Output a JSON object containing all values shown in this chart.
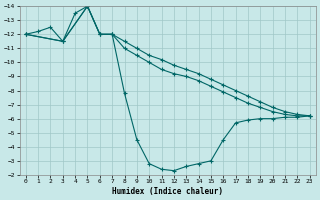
{
  "xlabel": "Humidex (Indice chaleur)",
  "ylabel": "",
  "bg_color": "#c8e8e8",
  "line_color": "#006666",
  "grid_color": "#a0c8c8",
  "xlim": [
    -0.5,
    23.5
  ],
  "ylim_bottom": -14,
  "ylim_top": -2,
  "xticks": [
    0,
    1,
    2,
    3,
    4,
    5,
    6,
    7,
    8,
    9,
    10,
    11,
    12,
    13,
    14,
    15,
    16,
    17,
    18,
    19,
    20,
    21,
    22,
    23
  ],
  "yticks": [
    -2,
    -3,
    -4,
    -5,
    -6,
    -7,
    -8,
    -9,
    -10,
    -11,
    -12,
    -13,
    -14
  ],
  "series": [
    {
      "x": [
        0,
        1,
        2,
        3,
        4,
        5,
        6,
        7,
        8,
        9,
        10,
        11,
        12,
        13,
        14,
        15,
        16,
        17,
        18,
        19,
        20,
        21,
        22,
        23
      ],
      "y": [
        -12,
        -12.2,
        -12.5,
        -11.5,
        -13.5,
        -14,
        -12,
        -12,
        -7.8,
        -4.5,
        -2.8,
        -2.4,
        -2.3,
        -2.6,
        -2.8,
        -3.0,
        -4.5,
        -5.7,
        -5.9,
        -6.0,
        -6.0,
        -6.1,
        -6.1,
        -6.2
      ]
    },
    {
      "x": [
        0,
        3,
        5,
        6,
        7,
        8,
        9,
        10,
        11,
        12,
        13,
        14,
        15,
        16,
        17,
        18,
        19,
        20,
        21,
        22,
        23
      ],
      "y": [
        -12,
        -11.5,
        -14,
        -12,
        -12,
        -11.0,
        -10.5,
        -10.0,
        -9.5,
        -9.2,
        -9.0,
        -8.7,
        -8.3,
        -7.9,
        -7.5,
        -7.1,
        -6.8,
        -6.5,
        -6.3,
        -6.2,
        -6.2
      ]
    },
    {
      "x": [
        0,
        3,
        5,
        6,
        7,
        8,
        9,
        10,
        11,
        12,
        13,
        14,
        15,
        16,
        17,
        18,
        19,
        20,
        21,
        22,
        23
      ],
      "y": [
        -12,
        -11.5,
        -14,
        -12,
        -12,
        -11.5,
        -11.0,
        -10.5,
        -10.2,
        -9.8,
        -9.5,
        -9.2,
        -8.8,
        -8.4,
        -8.0,
        -7.6,
        -7.2,
        -6.8,
        -6.5,
        -6.3,
        -6.2
      ]
    }
  ]
}
